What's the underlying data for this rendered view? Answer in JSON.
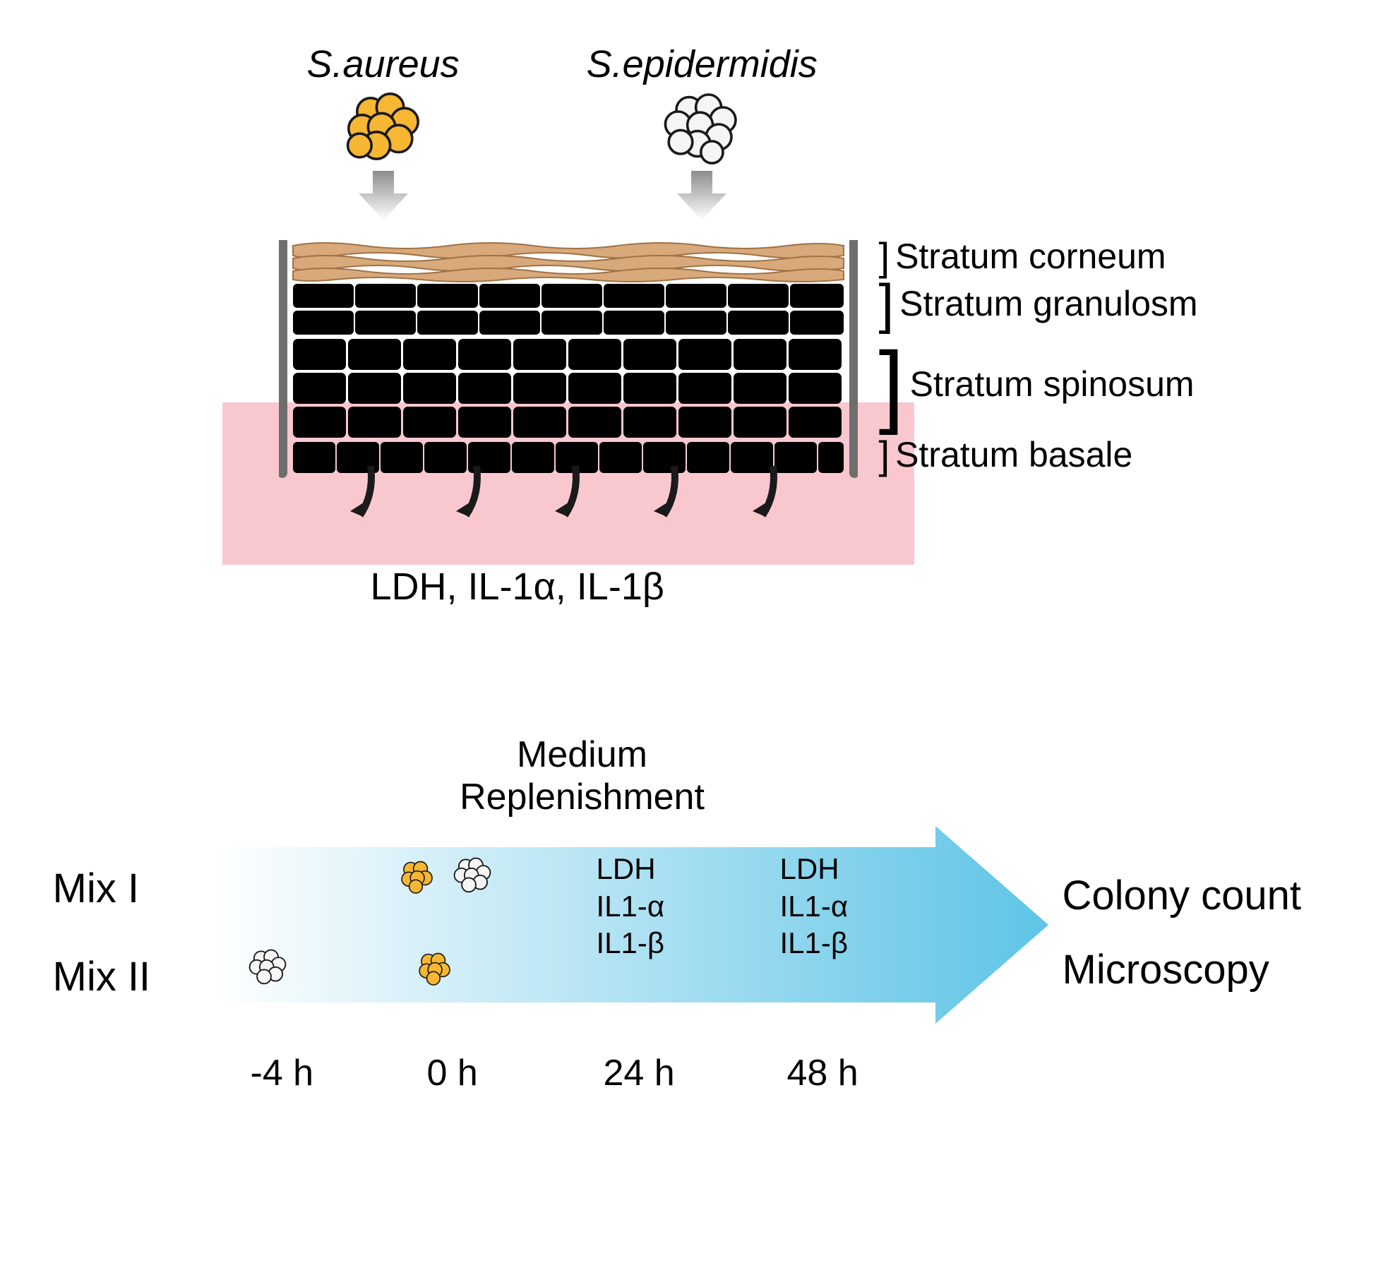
{
  "top": {
    "bacteria": [
      {
        "name": "S.aureus",
        "fill": "#f7b733",
        "stroke": "#1a1a1a"
      },
      {
        "name": "S.epidermidis",
        "fill": "#f5f5f5",
        "stroke": "#1a1a1a"
      }
    ],
    "arrow": {
      "grad_top": "#8c8c8c",
      "grad_bottom": "#ffffff"
    },
    "layers": [
      {
        "label": "Stratum corneum",
        "bracket_h": 48
      },
      {
        "label": "Stratum granulosm",
        "bracket_h": 80
      },
      {
        "label": "Stratum spinosum",
        "bracket_h": 150
      },
      {
        "label": "Stratum basale",
        "bracket_h": 50
      }
    ],
    "skin": {
      "wall_color": "#6e6e6e",
      "wall_width": 14,
      "cell_border": "#f4e5e0",
      "nucleus_color": "#c67373",
      "corneum_fill": "#d8a97a",
      "corneum_border": "#a07248",
      "granulosum_fill": "#ecc7a4",
      "spinosum_fill": "#fad7bd",
      "spinosum_nucleus": "#e18a8a",
      "basale_fill": "#ef8888",
      "basale_nucleus": "#c33a3a"
    },
    "medium_fill": "#f9c8cf",
    "secreted_text": "LDH, IL-1α, IL-1β",
    "down_arrow_color": "#1a1a1a"
  },
  "timeline": {
    "replenish_label": "Medium Replenishment",
    "arrow": {
      "grad_left": "#ffffff",
      "grad_right": "#5ec4e6",
      "border": "#5ec4e6"
    },
    "rows": [
      {
        "label": "Mix I"
      },
      {
        "label": "Mix II"
      }
    ],
    "icons": {
      "aureus_fill": "#f7b733",
      "epi_fill": "#ffffff",
      "stroke": "#1a1a1a"
    },
    "timepoints": [
      "-4 h",
      "0 h",
      "24 h",
      "48 h"
    ],
    "measurements": [
      "LDH",
      "IL1-α",
      "IL1-β"
    ],
    "outputs": [
      "Colony count",
      "Microscopy"
    ]
  }
}
